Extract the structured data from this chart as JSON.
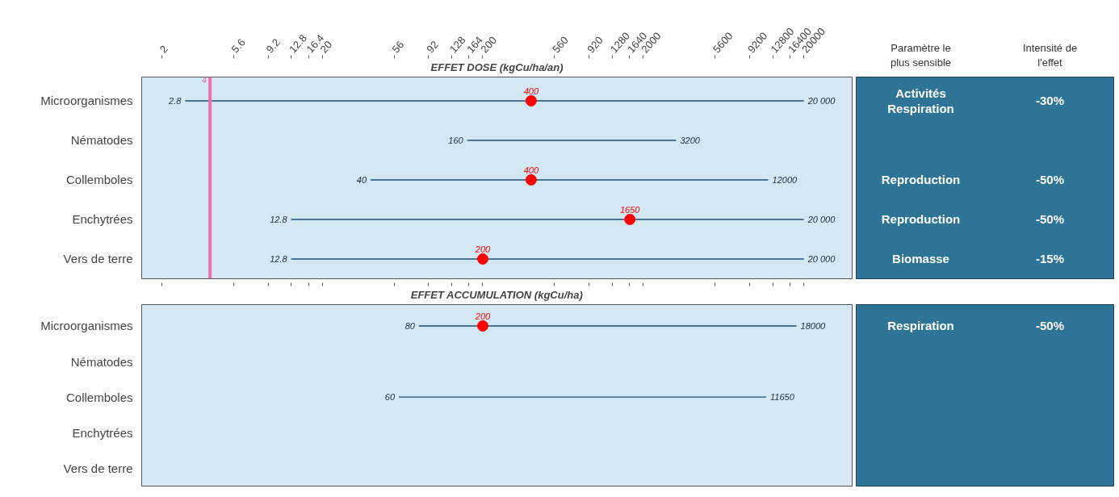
{
  "chart_data": [
    {
      "type": "bar",
      "orientation": "horizontal",
      "title": "EFFET DOSE (kgCu/ha/an)",
      "categories": [
        "Microorganismes",
        "Nématodes",
        "Collemboles",
        "Enchytrées",
        "Vers de terre"
      ],
      "log": "x",
      "xlim": [
        1.5,
        40000
      ],
      "xticks": [
        2,
        5.6,
        9.2,
        12.8,
        16.4,
        20,
        56,
        92,
        128,
        164,
        200,
        560,
        920,
        1280,
        1640,
        2000,
        5600,
        9200,
        12800,
        16400,
        20000
      ],
      "series": [
        {
          "type": "bar",
          "color": "#1f4e79",
          "base": [
            2.8,
            160,
            40,
            12.8,
            12.8
          ],
          "values": [
            19997.2,
            3040,
            11960,
            19987.2,
            19987.2
          ]
        },
        {
          "type": "scatter",
          "color": "#ff0000",
          "values": [
            400,
            null,
            400,
            1650,
            200
          ],
          "value_labels": [
            "400",
            null,
            "400",
            "1650",
            "200"
          ]
        }
      ],
      "annotations": [
        {
          "text": "2.8",
          "x": 2.8,
          "y": "Microorganismes"
        },
        {
          "text": "20 000",
          "x": 20000,
          "y": "Microorganismes"
        },
        {
          "text": "160",
          "x": 160,
          "y": "Nématodes"
        },
        {
          "text": "3200",
          "x": 3200,
          "y": "Nématodes"
        },
        {
          "text": "40",
          "x": 40,
          "y": "Collemboles"
        },
        {
          "text": "12000",
          "x": 12000,
          "y": "Collemboles"
        },
        {
          "text": "12.8",
          "x": 12.8,
          "y": "Enchytrées"
        },
        {
          "text": "20 000",
          "x": 20000,
          "y": "Enchytrées"
        },
        {
          "text": "12.8",
          "x": 12.8,
          "y": "Vers de terre"
        },
        {
          "text": "20 000",
          "x": 20000,
          "y": "Vers de terre"
        }
      ],
      "ref_lines": [
        {
          "axis": "x",
          "value": 4,
          "label": "4",
          "color": "#f06eaa"
        }
      ],
      "marker": "circle",
      "grid": false
    },
    {
      "type": "bar",
      "orientation": "horizontal",
      "title": "EFFET ACCUMULATION (kgCu/ha)",
      "categories": [
        "Microorganismes",
        "Nématodes",
        "Collemboles",
        "Enchytrées",
        "Vers de terre"
      ],
      "log": "x",
      "xlim": [
        1.5,
        40000
      ],
      "xticks": [
        2,
        5.6,
        9.2,
        12.8,
        16.4,
        20,
        56,
        92,
        128,
        164,
        200,
        560,
        920,
        1280,
        1640,
        2000,
        5600,
        9200,
        12800,
        16400,
        20000
      ],
      "tick_labels": "y",
      "series": [
        {
          "type": "bar",
          "color": "#1f4e79",
          "base": [
            80,
            null,
            60,
            null,
            null
          ],
          "values": [
            17920,
            null,
            11590,
            null,
            null
          ]
        },
        {
          "type": "scatter",
          "color": "#ff0000",
          "values": [
            200,
            null,
            null,
            null,
            null
          ],
          "value_labels": [
            "200",
            null,
            null,
            null,
            null
          ]
        }
      ],
      "annotations": [
        {
          "text": "80",
          "x": 80,
          "y": "Microorganismes"
        },
        {
          "text": "18000",
          "x": 18000,
          "y": "Microorganismes"
        },
        {
          "text": "60",
          "x": 60,
          "y": "Collemboles"
        },
        {
          "text": "11650",
          "x": 11650,
          "y": "Collemboles"
        }
      ],
      "marker": "circle",
      "grid": false
    },
    {
      "type": "other",
      "categories": [
        "Paramètre le\nplus sensible",
        "Intensité de\nl'effet"
      ],
      "cell_labels": [
        [
          "Activités\nRespiration",
          "-30%"
        ],
        [
          null,
          null
        ],
        [
          "Reproduction",
          "-50%"
        ],
        [
          "Reproduction",
          "-50%"
        ],
        [
          "Biomasse",
          "-15%"
        ]
      ]
    },
    {
      "type": "other",
      "cell_labels": [
        [
          "Respiration",
          "-50%"
        ],
        [
          null,
          null
        ],
        [
          null,
          null
        ],
        [
          null,
          null
        ],
        [
          null,
          null
        ]
      ]
    }
  ]
}
